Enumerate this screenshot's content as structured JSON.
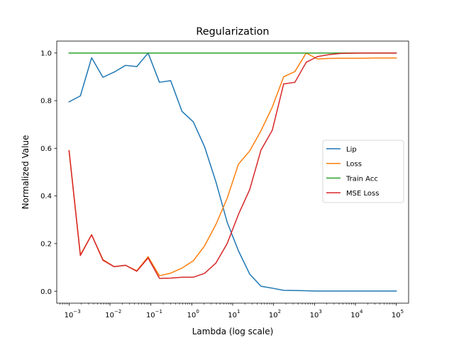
{
  "chart_data": {
    "type": "line",
    "title": "Regularization",
    "xlabel": "Lambda (log scale)",
    "ylabel": "Normalized Value",
    "xscale": "log",
    "xlim": [
      0.0005,
      200000
    ],
    "ylim": [
      -0.05,
      1.05
    ],
    "grid": false,
    "legend_position": "center-right",
    "x_ticks": [
      {
        "value": 0.001,
        "base": "10",
        "exp": "−3"
      },
      {
        "value": 0.01,
        "base": "10",
        "exp": "−2"
      },
      {
        "value": 0.1,
        "base": "10",
        "exp": "−1"
      },
      {
        "value": 1,
        "base": "10",
        "exp": "0"
      },
      {
        "value": 10,
        "base": "10",
        "exp": "1"
      },
      {
        "value": 100,
        "base": "10",
        "exp": "2"
      },
      {
        "value": 1000,
        "base": "10",
        "exp": "3"
      },
      {
        "value": 10000,
        "base": "10",
        "exp": "4"
      },
      {
        "value": 100000,
        "base": "10",
        "exp": "5"
      }
    ],
    "y_ticks": [
      {
        "value": 0.0,
        "label": "0.0"
      },
      {
        "value": 0.2,
        "label": "0.2"
      },
      {
        "value": 0.4,
        "label": "0.4"
      },
      {
        "value": 0.6,
        "label": "0.6"
      },
      {
        "value": 0.8,
        "label": "0.8"
      },
      {
        "value": 1.0,
        "label": "1.0"
      }
    ],
    "x": [
      0.001,
      0.00189,
      0.00356,
      0.00673,
      0.0127,
      0.024,
      0.0453,
      0.0856,
      0.162,
      0.305,
      0.576,
      1.09,
      2.05,
      3.88,
      7.33,
      13.8,
      26.1,
      49.3,
      93.1,
      176,
      332,
      627,
      1180,
      2240,
      4220,
      7970,
      15100,
      28400,
      53700,
      100000
    ],
    "series": [
      {
        "name": "Lip",
        "color": "#1f77b4",
        "values": [
          0.795,
          0.82,
          0.98,
          0.898,
          0.92,
          0.948,
          0.943,
          1.0,
          0.877,
          0.884,
          0.755,
          0.711,
          0.607,
          0.46,
          0.29,
          0.17,
          0.072,
          0.021,
          0.013,
          0.004,
          0.003,
          0.002,
          0.001,
          0.001,
          0.001,
          0.001,
          0.001,
          0.001,
          0.001,
          0.001
        ]
      },
      {
        "name": "Loss",
        "color": "#ff7f0e",
        "values": [
          0.59,
          0.153,
          0.237,
          0.133,
          0.103,
          0.109,
          0.086,
          0.145,
          0.065,
          0.076,
          0.097,
          0.128,
          0.19,
          0.28,
          0.39,
          0.533,
          0.589,
          0.674,
          0.773,
          0.9,
          0.922,
          1.0,
          0.975,
          0.977,
          0.978,
          0.978,
          0.978,
          0.979,
          0.979,
          0.979
        ]
      },
      {
        "name": "Train Acc",
        "color": "#2ca02c",
        "values": [
          1.0,
          1.0,
          1.0,
          1.0,
          1.0,
          1.0,
          1.0,
          1.0,
          1.0,
          1.0,
          1.0,
          1.0,
          1.0,
          1.0,
          1.0,
          1.0,
          1.0,
          1.0,
          1.0,
          1.0,
          1.0,
          1.0,
          1.0,
          1.0,
          1.0,
          1.0,
          1.0,
          1.0,
          1.0,
          1.0
        ]
      },
      {
        "name": "MSE Loss",
        "color": "#d62728",
        "values": [
          0.59,
          0.15,
          0.237,
          0.13,
          0.103,
          0.109,
          0.084,
          0.14,
          0.054,
          0.055,
          0.059,
          0.059,
          0.075,
          0.118,
          0.2,
          0.322,
          0.427,
          0.593,
          0.676,
          0.87,
          0.877,
          0.961,
          0.985,
          0.993,
          0.998,
          0.999,
          1.0,
          1.0,
          1.0,
          1.0
        ]
      }
    ]
  }
}
